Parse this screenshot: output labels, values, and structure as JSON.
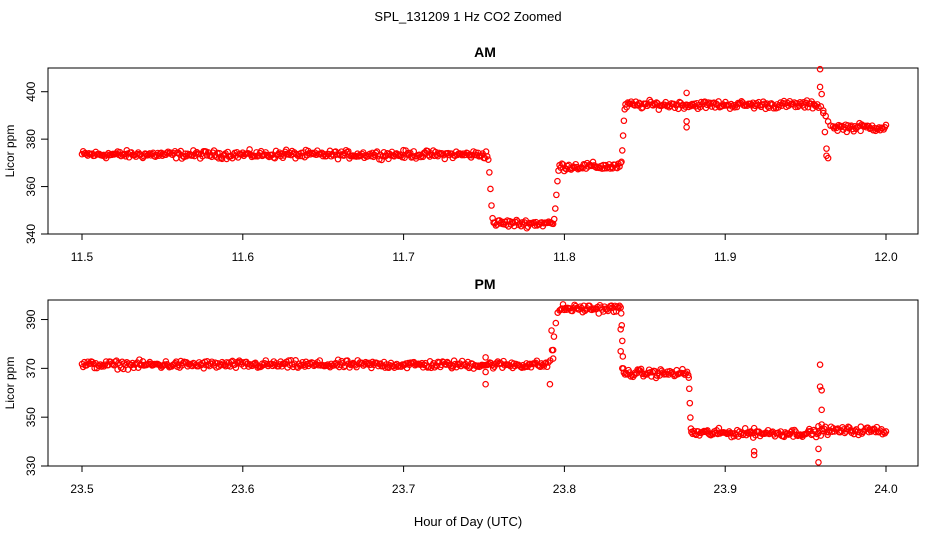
{
  "figure": {
    "title": "SPL_131209  1 Hz CO2 Zoomed",
    "xlabel": "Hour of Day (UTC)"
  },
  "colors": {
    "points": "#ff0000",
    "axes": "#000000"
  },
  "chart_data": [
    {
      "type": "scatter",
      "title": "AM",
      "xlabel": "",
      "ylabel": "Licor ppm",
      "xlim": [
        11.5,
        12.0
      ],
      "ylim": [
        340,
        410
      ],
      "xticks": [
        "11.5",
        "11.6",
        "11.7",
        "11.8",
        "11.9",
        "12.0"
      ],
      "yticks": [
        "340",
        "360",
        "380",
        "400"
      ],
      "marker": "open-circle",
      "segments": [
        {
          "x": [
            11.5,
            11.752
          ],
          "y": 373.5,
          "noise": 0.8
        },
        {
          "x": [
            11.756,
            11.793
          ],
          "y": 344.5,
          "noise": 0.8
        },
        {
          "x": [
            11.797,
            11.835
          ],
          "y": 368.5,
          "noise": 0.8
        },
        {
          "x": [
            11.838,
            11.958
          ],
          "y": 394.5,
          "noise": 0.8
        },
        {
          "x": [
            11.967,
            12.0
          ],
          "y": 385.0,
          "noise": 0.8
        }
      ],
      "transitions": [
        {
          "x": [
            11.752,
            11.756
          ],
          "y": [
            373.5,
            344.5
          ]
        },
        {
          "x": [
            11.793,
            11.797
          ],
          "y": [
            344.5,
            368.5
          ]
        },
        {
          "x": [
            11.835,
            11.838
          ],
          "y": [
            368.5,
            394.5
          ]
        },
        {
          "x": [
            11.958,
            11.967
          ],
          "y": [
            394.5,
            385.0
          ]
        }
      ],
      "outliers": [
        {
          "x": 11.627,
          "y": 375.5
        },
        {
          "x": 11.876,
          "y": 399.5
        },
        {
          "x": 11.876,
          "y": 387.5
        },
        {
          "x": 11.876,
          "y": 385.0
        },
        {
          "x": 11.959,
          "y": 409.5
        },
        {
          "x": 11.959,
          "y": 402.0
        },
        {
          "x": 11.96,
          "y": 399.0
        },
        {
          "x": 11.961,
          "y": 391.0
        },
        {
          "x": 11.962,
          "y": 383.0
        },
        {
          "x": 11.963,
          "y": 376.0
        },
        {
          "x": 11.963,
          "y": 373.0
        },
        {
          "x": 11.964,
          "y": 372.0
        }
      ]
    },
    {
      "type": "scatter",
      "title": "PM",
      "xlabel": "",
      "ylabel": "Licor ppm",
      "xlim": [
        23.5,
        24.0
      ],
      "ylim": [
        330,
        398
      ],
      "xticks": [
        "23.5",
        "23.6",
        "23.7",
        "23.8",
        "23.9",
        "24.0"
      ],
      "yticks": [
        "330",
        "350",
        "370",
        "390"
      ],
      "marker": "open-circle",
      "segments": [
        {
          "x": [
            23.5,
            23.79
          ],
          "y": 371.5,
          "noise": 0.8
        },
        {
          "x": [
            23.797,
            23.835
          ],
          "y": 394.5,
          "noise": 0.8
        },
        {
          "x": [
            23.837,
            23.877
          ],
          "y": 368.0,
          "noise": 0.8
        },
        {
          "x": [
            23.879,
            23.958
          ],
          "y": 343.5,
          "noise": 0.8
        },
        {
          "x": [
            23.958,
            24.0
          ],
          "y": 344.5,
          "noise": 0.8
        }
      ],
      "transitions": [
        {
          "x": [
            23.79,
            23.797
          ],
          "y": [
            371.5,
            394.5
          ]
        },
        {
          "x": [
            23.835,
            23.837
          ],
          "y": [
            394.5,
            368.0
          ]
        },
        {
          "x": [
            23.877,
            23.879
          ],
          "y": [
            368.0,
            343.5
          ]
        }
      ],
      "outliers": [
        {
          "x": 23.751,
          "y": 374.5
        },
        {
          "x": 23.751,
          "y": 368.5
        },
        {
          "x": 23.751,
          "y": 363.5
        },
        {
          "x": 23.792,
          "y": 385.5
        },
        {
          "x": 23.793,
          "y": 377.5
        },
        {
          "x": 23.793,
          "y": 374.0
        },
        {
          "x": 23.791,
          "y": 363.5
        },
        {
          "x": 23.835,
          "y": 386.0
        },
        {
          "x": 23.835,
          "y": 377.0
        },
        {
          "x": 23.836,
          "y": 370.0
        },
        {
          "x": 23.918,
          "y": 345.5
        },
        {
          "x": 23.918,
          "y": 336.0
        },
        {
          "x": 23.918,
          "y": 334.5
        },
        {
          "x": 23.959,
          "y": 371.5
        },
        {
          "x": 23.959,
          "y": 362.5
        },
        {
          "x": 23.96,
          "y": 361.0
        },
        {
          "x": 23.96,
          "y": 353.0
        },
        {
          "x": 23.96,
          "y": 347.0
        },
        {
          "x": 23.958,
          "y": 337.0
        },
        {
          "x": 23.958,
          "y": 331.5
        }
      ]
    }
  ]
}
